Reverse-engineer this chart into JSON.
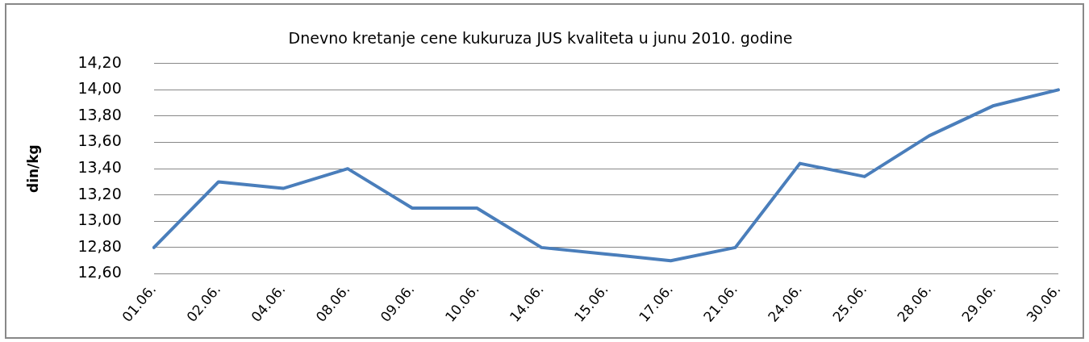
{
  "chart_data": {
    "type": "line",
    "title": "Dnevno kretanje cene kukuruza JUS kvaliteta u junu 2010. godine",
    "ylabel": "din/kg",
    "categories": [
      "01.06.",
      "02.06.",
      "04.06.",
      "08.06.",
      "09.06.",
      "10.06.",
      "14.06.",
      "15.06.",
      "17.06.",
      "21.06.",
      "24.06.",
      "25.06.",
      "28.06.",
      "29.06.",
      "30.06."
    ],
    "series": [
      {
        "color": "#4a7ebb",
        "values": [
          12.8,
          13.3,
          13.25,
          13.4,
          13.1,
          13.1,
          12.8,
          12.75,
          12.7,
          12.8,
          13.44,
          13.34,
          13.65,
          13.88,
          14.0
        ]
      }
    ],
    "ylim": [
      12.6,
      14.2
    ],
    "yticks": [
      {
        "value": 12.6,
        "label": "12,60"
      },
      {
        "value": 12.8,
        "label": "12,80"
      },
      {
        "value": 13.0,
        "label": "13,00"
      },
      {
        "value": 13.2,
        "label": "13,20"
      },
      {
        "value": 13.4,
        "label": "13,40"
      },
      {
        "value": 13.6,
        "label": "13,60"
      },
      {
        "value": 13.8,
        "label": "13,80"
      },
      {
        "value": 14.0,
        "label": "14,00"
      },
      {
        "value": 14.2,
        "label": "14,20"
      }
    ],
    "grid": "y",
    "legend": false,
    "marker": "none",
    "line_style": "solid"
  }
}
